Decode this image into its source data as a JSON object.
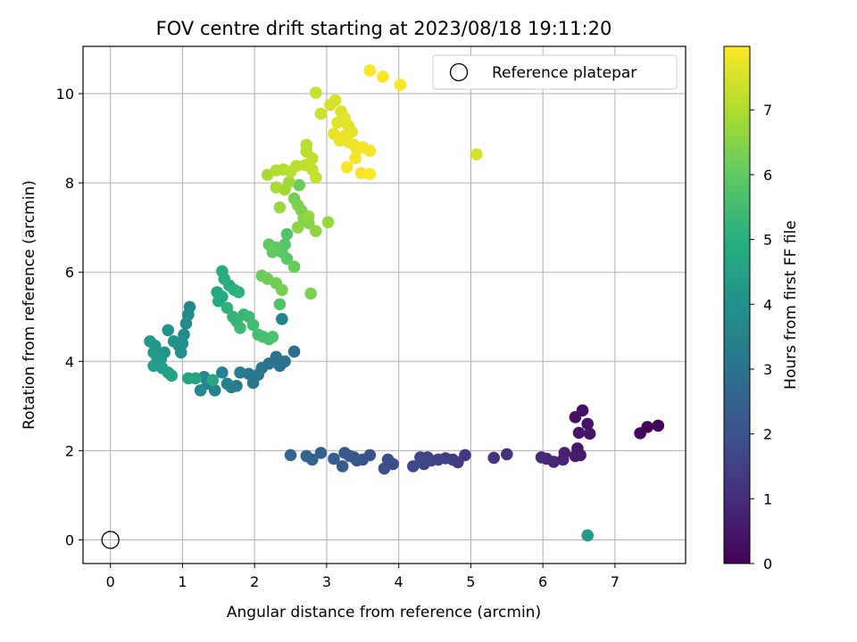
{
  "chart_data": {
    "type": "scatter",
    "title": "FOV centre drift starting at 2023/08/18 19:11:20",
    "xlabel": "Angular distance from reference (arcmin)",
    "ylabel": "Rotation from reference (arcmin)",
    "xlim": [
      -0.38,
      7.98
    ],
    "ylim": [
      -0.53,
      11.06
    ],
    "xticks": [
      0,
      1,
      2,
      3,
      4,
      5,
      6,
      7
    ],
    "yticks": [
      0,
      2,
      4,
      6,
      8,
      10
    ],
    "grid": true,
    "colormap": "viridis",
    "colorbar": {
      "label": "Hours from first FF file",
      "min": 0,
      "max": 7.98,
      "ticks": [
        0,
        1,
        2,
        3,
        4,
        5,
        6,
        7
      ]
    },
    "legend": {
      "placement": "top-right",
      "entries": [
        "Reference platepar"
      ]
    },
    "reference_point": {
      "x": 0,
      "y": 0
    },
    "points": [
      [
        7.6,
        2.56,
        0.05
      ],
      [
        7.45,
        2.53,
        0.1
      ],
      [
        7.35,
        2.39,
        0.15
      ],
      [
        6.55,
        2.9,
        0.3
      ],
      [
        6.45,
        2.75,
        0.35
      ],
      [
        6.62,
        2.6,
        0.4
      ],
      [
        6.65,
        2.38,
        0.45
      ],
      [
        6.5,
        2.4,
        0.5
      ],
      [
        6.48,
        2.05,
        0.55
      ],
      [
        6.52,
        1.9,
        0.6
      ],
      [
        6.45,
        1.88,
        0.65
      ],
      [
        6.3,
        1.95,
        0.75
      ],
      [
        6.28,
        1.8,
        0.8
      ],
      [
        6.15,
        1.75,
        0.85
      ],
      [
        6.05,
        1.82,
        0.9
      ],
      [
        5.98,
        1.85,
        0.95
      ],
      [
        5.5,
        1.92,
        1.1
      ],
      [
        5.32,
        1.84,
        1.15
      ],
      [
        4.92,
        1.9,
        1.3
      ],
      [
        4.82,
        1.74,
        1.35
      ],
      [
        4.75,
        1.8,
        1.4
      ],
      [
        4.65,
        1.83,
        1.45
      ],
      [
        4.55,
        1.8,
        1.5
      ],
      [
        4.45,
        1.78,
        1.55
      ],
      [
        4.4,
        1.85,
        1.6
      ],
      [
        4.35,
        1.7,
        1.65
      ],
      [
        4.3,
        1.85,
        1.7
      ],
      [
        4.2,
        1.65,
        1.75
      ],
      [
        3.92,
        1.7,
        1.85
      ],
      [
        3.85,
        1.8,
        1.9
      ],
      [
        3.8,
        1.6,
        1.95
      ],
      [
        3.6,
        1.9,
        2.0
      ],
      [
        3.5,
        1.8,
        2.05
      ],
      [
        3.42,
        1.78,
        2.1
      ],
      [
        3.38,
        1.85,
        2.15
      ],
      [
        3.32,
        1.88,
        2.2
      ],
      [
        3.25,
        1.95,
        2.25
      ],
      [
        3.22,
        1.65,
        2.3
      ],
      [
        3.1,
        1.82,
        2.35
      ],
      [
        2.92,
        1.95,
        2.45
      ],
      [
        2.8,
        1.8,
        2.55
      ],
      [
        2.72,
        1.88,
        2.6
      ],
      [
        2.5,
        1.9,
        2.7
      ],
      [
        6.62,
        0.1,
        4.3
      ],
      [
        2.55,
        4.22,
        2.85
      ],
      [
        2.42,
        4.0,
        2.9
      ],
      [
        2.35,
        3.9,
        2.95
      ],
      [
        2.3,
        4.1,
        3.0
      ],
      [
        2.2,
        3.95,
        3.05
      ],
      [
        2.1,
        3.85,
        3.1
      ],
      [
        2.05,
        3.7,
        3.15
      ],
      [
        1.98,
        3.52,
        3.2
      ],
      [
        1.92,
        3.72,
        3.25
      ],
      [
        1.8,
        3.75,
        3.3
      ],
      [
        1.75,
        3.45,
        3.35
      ],
      [
        1.68,
        3.42,
        3.4
      ],
      [
        1.62,
        3.5,
        3.45
      ],
      [
        1.55,
        3.75,
        3.5
      ],
      [
        1.45,
        3.35,
        3.55
      ],
      [
        1.35,
        3.5,
        3.6
      ],
      [
        1.3,
        3.65,
        3.65
      ],
      [
        1.25,
        3.35,
        3.7
      ],
      [
        2.38,
        4.95,
        3.45
      ],
      [
        1.1,
        5.22,
        3.65
      ],
      [
        1.08,
        5.05,
        3.7
      ],
      [
        1.05,
        4.85,
        3.75
      ],
      [
        1.02,
        4.6,
        3.8
      ],
      [
        1.0,
        4.4,
        3.85
      ],
      [
        0.98,
        4.2,
        3.9
      ],
      [
        0.95,
        4.35,
        3.95
      ],
      [
        0.88,
        4.45,
        4.0
      ],
      [
        0.8,
        4.7,
        4.05
      ],
      [
        0.75,
        4.2,
        4.1
      ],
      [
        0.7,
        4.05,
        4.15
      ],
      [
        0.62,
        4.35,
        4.2
      ],
      [
        0.55,
        4.45,
        4.25
      ],
      [
        0.6,
        4.2,
        4.3
      ],
      [
        0.65,
        4.05,
        4.35
      ],
      [
        0.6,
        3.9,
        4.4
      ],
      [
        0.72,
        3.85,
        4.45
      ],
      [
        0.8,
        3.75,
        4.5
      ],
      [
        0.85,
        3.68,
        4.55
      ],
      [
        1.08,
        3.62,
        4.6
      ],
      [
        1.18,
        3.62,
        4.65
      ],
      [
        1.42,
        3.58,
        4.7
      ],
      [
        1.48,
        5.55,
        4.75
      ],
      [
        1.55,
        5.45,
        4.8
      ],
      [
        1.5,
        5.35,
        4.85
      ],
      [
        1.55,
        6.02,
        4.9
      ],
      [
        1.58,
        5.85,
        4.95
      ],
      [
        1.65,
        5.7,
        5.0
      ],
      [
        1.72,
        5.6,
        5.05
      ],
      [
        1.78,
        5.55,
        5.1
      ],
      [
        1.62,
        5.2,
        5.15
      ],
      [
        1.7,
        5.0,
        5.2
      ],
      [
        1.75,
        4.9,
        5.25
      ],
      [
        1.85,
        5.05,
        5.3
      ],
      [
        1.92,
        5.0,
        5.35
      ],
      [
        1.8,
        4.75,
        5.4
      ],
      [
        1.98,
        4.82,
        5.45
      ],
      [
        2.05,
        4.6,
        5.5
      ],
      [
        2.12,
        4.55,
        5.55
      ],
      [
        2.2,
        4.5,
        5.6
      ],
      [
        2.25,
        4.55,
        5.65
      ],
      [
        2.35,
        5.28,
        5.7
      ],
      [
        2.45,
        6.85,
        5.75
      ],
      [
        2.42,
        6.62,
        5.8
      ],
      [
        2.38,
        6.45,
        5.85
      ],
      [
        2.45,
        6.3,
        5.9
      ],
      [
        2.3,
        6.55,
        5.95
      ],
      [
        2.2,
        6.62,
        6.0
      ],
      [
        2.25,
        6.45,
        6.05
      ],
      [
        2.55,
        6.12,
        6.1
      ],
      [
        2.1,
        5.92,
        6.15
      ],
      [
        2.18,
        5.85,
        6.2
      ],
      [
        2.3,
        5.75,
        6.25
      ],
      [
        2.38,
        5.6,
        6.3
      ],
      [
        2.78,
        5.52,
        6.35
      ],
      [
        2.62,
        7.95,
        6.15
      ],
      [
        2.55,
        7.65,
        6.25
      ],
      [
        2.6,
        7.5,
        6.35
      ],
      [
        2.65,
        7.38,
        6.4
      ],
      [
        2.68,
        7.2,
        6.45
      ],
      [
        2.75,
        7.1,
        6.5
      ],
      [
        2.6,
        7.0,
        6.55
      ],
      [
        2.85,
        6.92,
        6.6
      ],
      [
        2.75,
        7.25,
        6.65
      ],
      [
        3.02,
        7.12,
        6.7
      ],
      [
        2.35,
        7.45,
        6.75
      ],
      [
        2.48,
        8.02,
        6.8
      ],
      [
        2.42,
        7.85,
        6.85
      ],
      [
        2.3,
        7.9,
        6.9
      ],
      [
        2.18,
        8.18,
        6.95
      ],
      [
        2.3,
        8.28,
        7.0
      ],
      [
        2.4,
        8.3,
        7.05
      ],
      [
        2.5,
        8.25,
        7.1
      ],
      [
        2.58,
        8.38,
        7.15
      ],
      [
        2.7,
        8.4,
        7.2
      ],
      [
        2.8,
        8.3,
        7.25
      ],
      [
        2.85,
        8.12,
        7.3
      ],
      [
        2.72,
        8.85,
        7.1
      ],
      [
        2.72,
        8.7,
        7.15
      ],
      [
        2.8,
        8.55,
        7.2
      ],
      [
        2.85,
        10.02,
        7.35
      ],
      [
        2.92,
        9.55,
        7.4
      ],
      [
        3.05,
        9.75,
        7.45
      ],
      [
        3.12,
        9.85,
        7.5
      ],
      [
        3.2,
        9.6,
        7.55
      ],
      [
        3.15,
        9.35,
        7.6
      ],
      [
        3.25,
        9.45,
        7.62
      ],
      [
        3.3,
        9.28,
        7.65
      ],
      [
        3.35,
        9.15,
        7.68
      ],
      [
        3.1,
        9.1,
        7.7
      ],
      [
        3.18,
        8.95,
        7.72
      ],
      [
        3.25,
        9.05,
        7.75
      ],
      [
        3.3,
        8.92,
        7.78
      ],
      [
        3.38,
        8.85,
        7.8
      ],
      [
        3.42,
        8.75,
        7.82
      ],
      [
        3.5,
        8.8,
        7.84
      ],
      [
        3.6,
        8.72,
        7.86
      ],
      [
        3.4,
        8.55,
        7.88
      ],
      [
        3.28,
        8.35,
        7.9
      ],
      [
        3.48,
        8.22,
        7.92
      ],
      [
        3.6,
        8.2,
        7.94
      ],
      [
        3.6,
        10.52,
        7.95
      ],
      [
        3.78,
        10.38,
        7.96
      ],
      [
        4.02,
        10.2,
        7.97
      ],
      [
        5.08,
        8.64,
        7.5
      ]
    ]
  }
}
